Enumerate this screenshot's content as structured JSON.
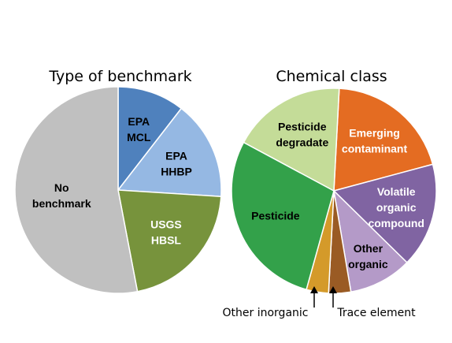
{
  "chart_data": [
    {
      "type": "pie",
      "title": "Type of benchmark",
      "slices": [
        {
          "label": "EPA MCL",
          "lines": [
            "EPA",
            "MCL"
          ],
          "value": 10.5,
          "color": "#4f81bd",
          "text_color": "#000000"
        },
        {
          "label": "EPA HHBP",
          "lines": [
            "EPA",
            "HHBP"
          ],
          "value": 15.5,
          "color": "#95b8e3",
          "text_color": "#000000"
        },
        {
          "label": "USGS HBSL",
          "lines": [
            "USGS",
            "HBSL"
          ],
          "value": 21.0,
          "color": "#77933c",
          "text_color": "#ffffff"
        },
        {
          "label": "No benchmark",
          "lines": [
            "No",
            "benchmark"
          ],
          "value": 53.0,
          "color": "#c0c0c0",
          "text_color": "#000000"
        }
      ]
    },
    {
      "type": "pie",
      "title": "Chemical class",
      "slices": [
        {
          "label": "Emerging contaminant",
          "lines": [
            "Emerging",
            "contaminant"
          ],
          "value": 20.0,
          "color": "#e46c22",
          "text_color": "#ffffff"
        },
        {
          "label": "Volatile organic compound",
          "lines": [
            "Volatile",
            "organic",
            "compound"
          ],
          "value": 16.5,
          "color": "#8064a2",
          "text_color": "#ffffff"
        },
        {
          "label": "Other organic",
          "lines": [
            "Other",
            "organic"
          ],
          "value": 10.0,
          "color": "#b49ac8",
          "text_color": "#000000"
        },
        {
          "label": "Trace element",
          "lines": [],
          "value": 3.5,
          "color": "#9a5b24",
          "text_color": "#000000"
        },
        {
          "label": "Other inorganic",
          "lines": [],
          "value": 3.5,
          "color": "#d49a2a",
          "text_color": "#000000"
        },
        {
          "label": "Pesticide",
          "lines": [
            "Pesticide"
          ],
          "value": 28.5,
          "color": "#33a14a",
          "text_color": "#000000"
        },
        {
          "label": "Pesticide degradate",
          "lines": [
            "Pesticide",
            "degradate"
          ],
          "value": 18.0,
          "color": "#c4dc98",
          "text_color": "#000000"
        }
      ]
    }
  ],
  "callouts": {
    "other_inorganic": "Other inorganic",
    "trace_element": "Trace element"
  }
}
